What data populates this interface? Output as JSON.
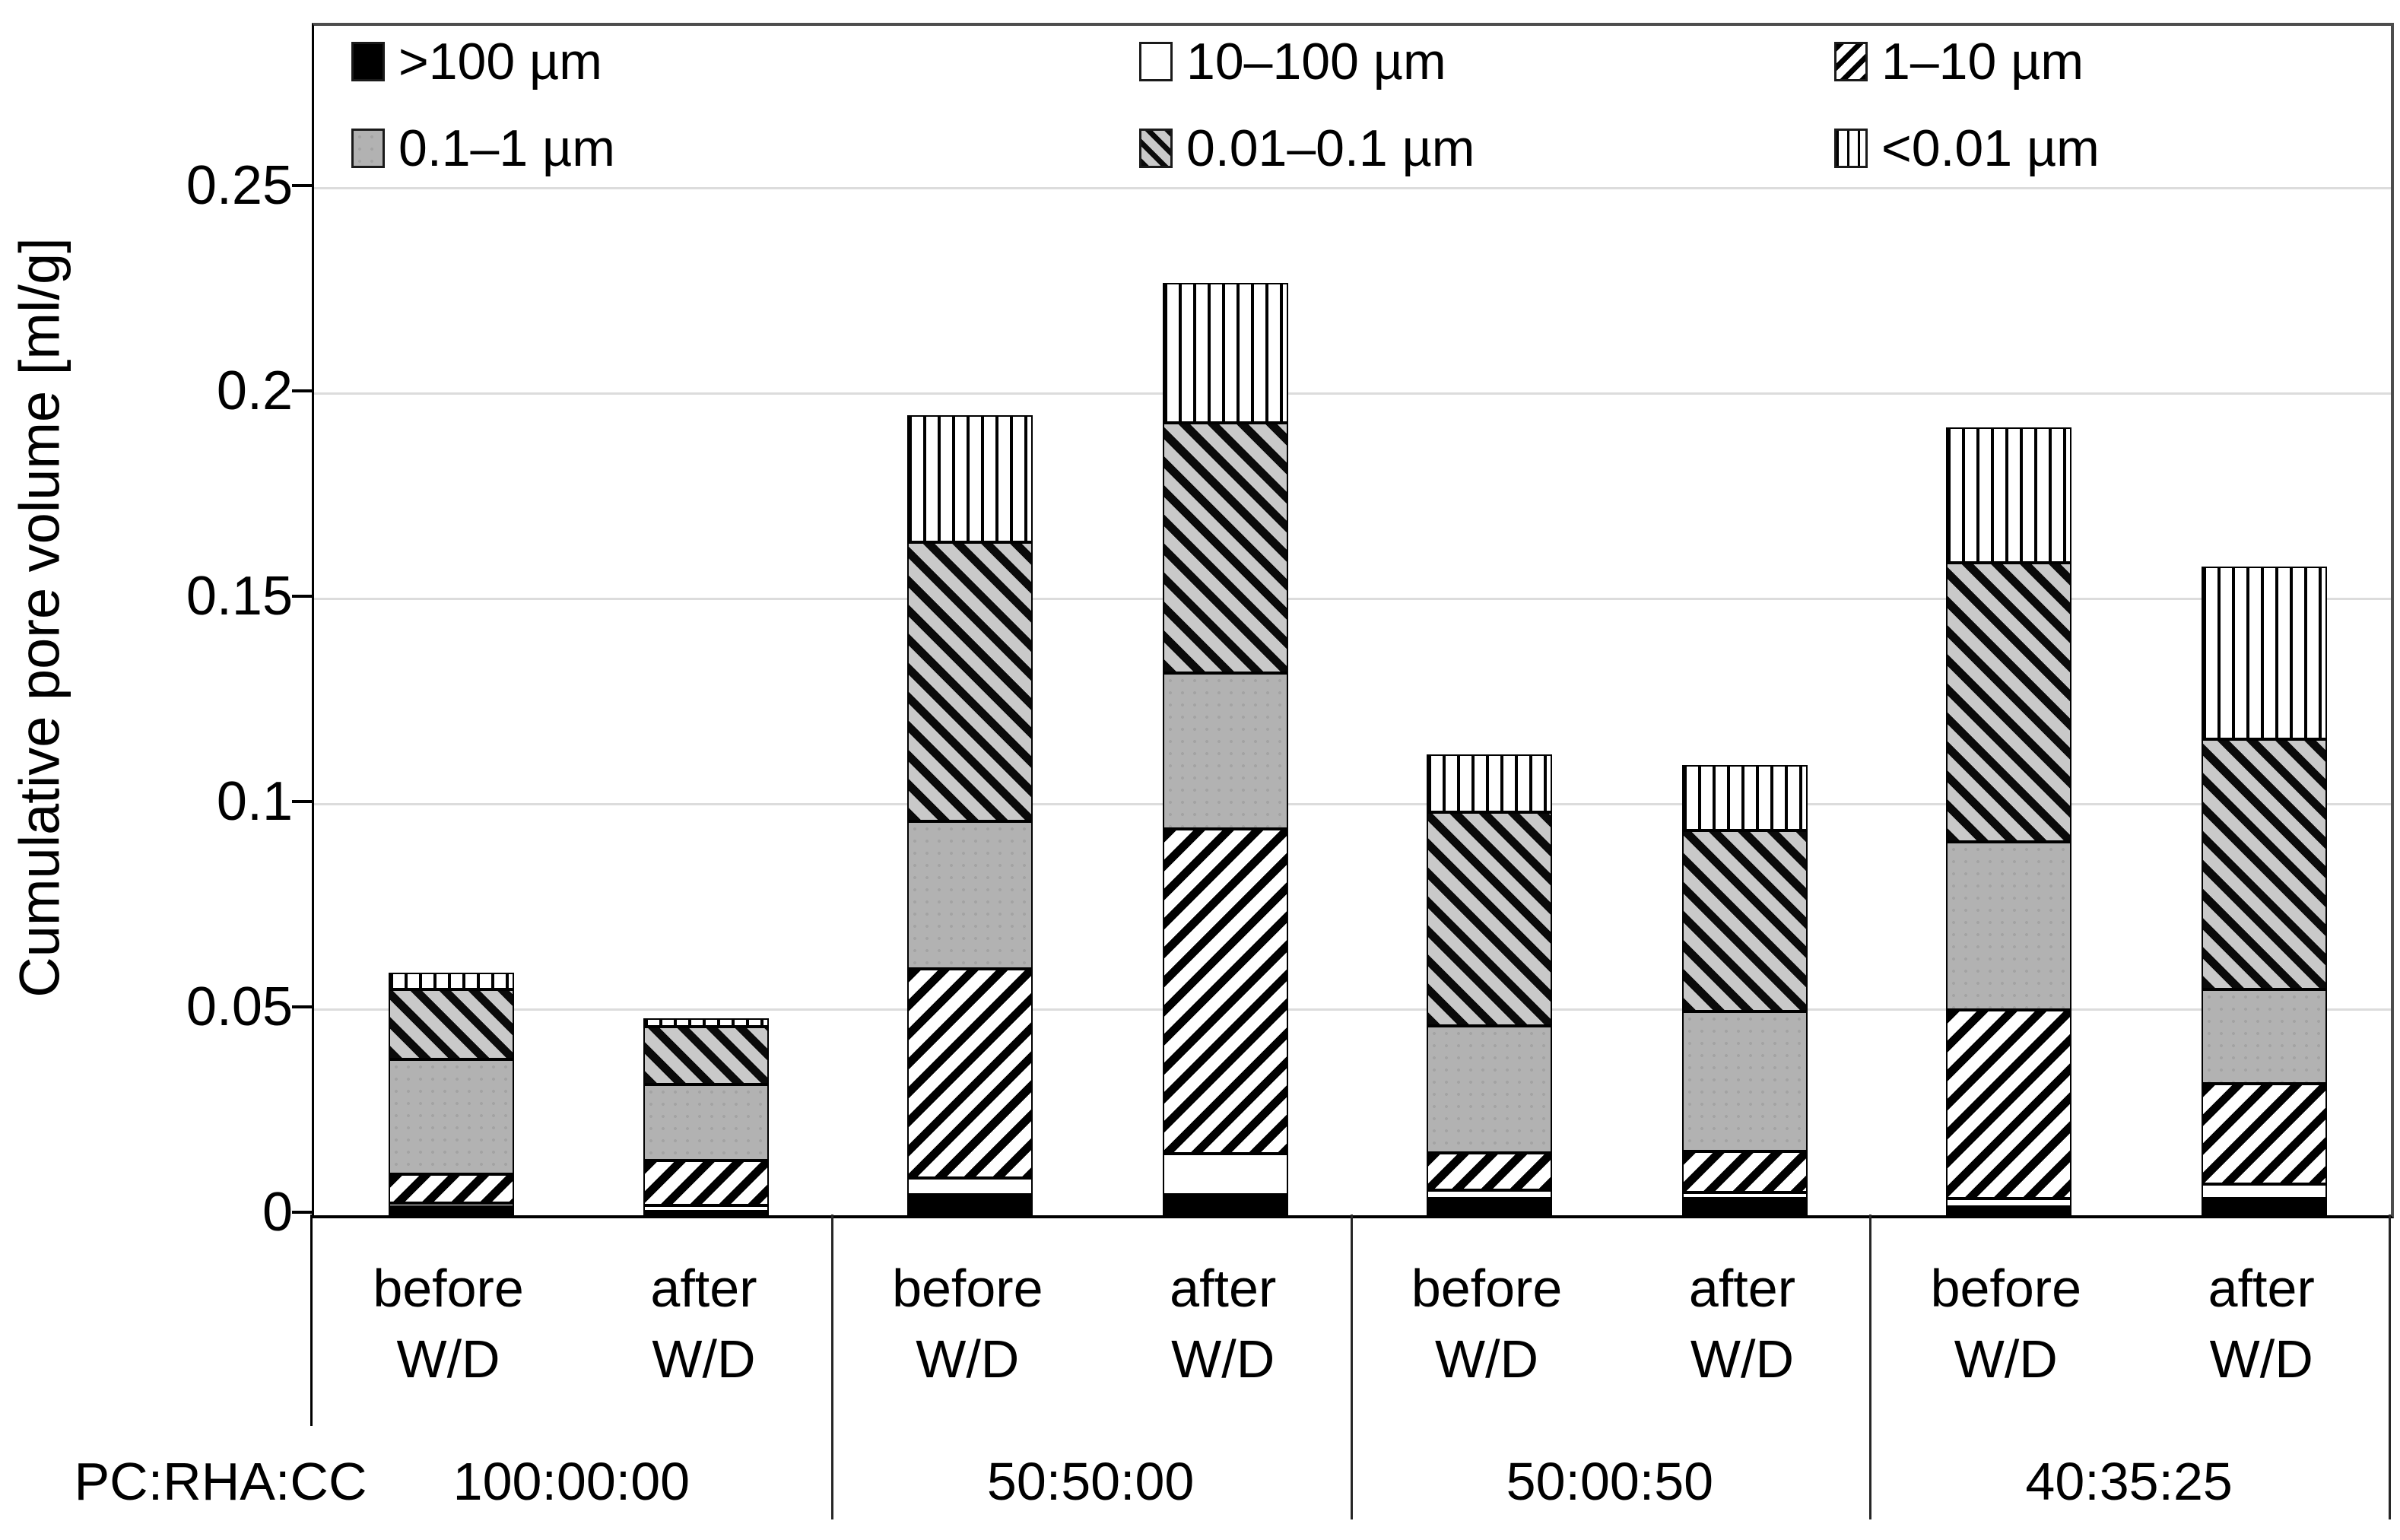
{
  "chart_data": {
    "type": "bar",
    "stacked": true,
    "title": "",
    "ylabel": "Cumulative pore volume [ml/g]",
    "xlabel_prefix": "PC:RHA:CC",
    "ylim": [
      0,
      0.2896
    ],
    "yticks": [
      0,
      0.05,
      0.1,
      0.15,
      0.2,
      0.25
    ],
    "ytick_labels": [
      "0",
      "0.05",
      "0.1",
      "0.15",
      "0.2",
      "0.25"
    ],
    "grid": "horizontal-light-gray",
    "legend_position": "top-inside-two-rows",
    "bar_labels": [
      "before\nW/D",
      "after\nW/D"
    ],
    "groups": [
      "100:00:00",
      "50:50:00",
      "50:00:50",
      "40:35:25"
    ],
    "bar_order_note": "8 bars: before/after W/D for each of the 4 PC:RHA:CC mixes",
    "series": [
      {
        "name": ">100 µm",
        "pattern": "solid-black",
        "values": [
          0.002,
          0.001,
          0.005,
          0.005,
          0.004,
          0.004,
          0.002,
          0.004
        ]
      },
      {
        "name": "10–100 µm",
        "pattern": "white",
        "values": [
          0.001,
          0.0015,
          0.004,
          0.01,
          0.002,
          0.0015,
          0.002,
          0.0035
        ]
      },
      {
        "name": "1–10 µm",
        "pattern": "diagonal-up-hatch",
        "values": [
          0.007,
          0.011,
          0.051,
          0.079,
          0.009,
          0.01,
          0.046,
          0.0245
        ]
      },
      {
        "name": "0.1–1 µm",
        "pattern": "solid-gray",
        "values": [
          0.028,
          0.0185,
          0.036,
          0.038,
          0.031,
          0.034,
          0.041,
          0.023
        ]
      },
      {
        "name": "0.01–0.1 µm",
        "pattern": "diagonal-down-hatch-on-gray",
        "values": [
          0.017,
          0.014,
          0.068,
          0.061,
          0.052,
          0.044,
          0.068,
          0.061
        ]
      },
      {
        "name": "<0.01 µm",
        "pattern": "vertical-lines",
        "values": [
          0.004,
          0.002,
          0.031,
          0.034,
          0.014,
          0.016,
          0.033,
          0.042
        ]
      }
    ],
    "bar_totals": [
      0.059,
      0.048,
      0.195,
      0.227,
      0.112,
      0.1095,
      0.192,
      0.158
    ]
  },
  "legend": {
    "items": [
      {
        "label": ">100 µm",
        "pattern": "solid-black"
      },
      {
        "label": "10–100 µm",
        "pattern": "white"
      },
      {
        "label": "1–10 µm",
        "pattern": "diagonal-up-hatch"
      },
      {
        "label": "0.1–1 µm",
        "pattern": "solid-gray"
      },
      {
        "label": "0.01–0.1 µm",
        "pattern": "diagonal-down-hatch-on-gray"
      },
      {
        "label": "<0.01 µm",
        "pattern": "vertical-lines"
      }
    ]
  },
  "axis": {
    "ylabel": "Cumulative pore volume [ml/g]",
    "category_prefix": "PC:RHA:CC"
  },
  "colors": {
    "bar_gray": "#b2b2b2",
    "hatch_gray_bg": "#c9c9c9",
    "gridline": "#dcdcdc",
    "frame": "#4d4d4d",
    "ink": "#000000"
  }
}
